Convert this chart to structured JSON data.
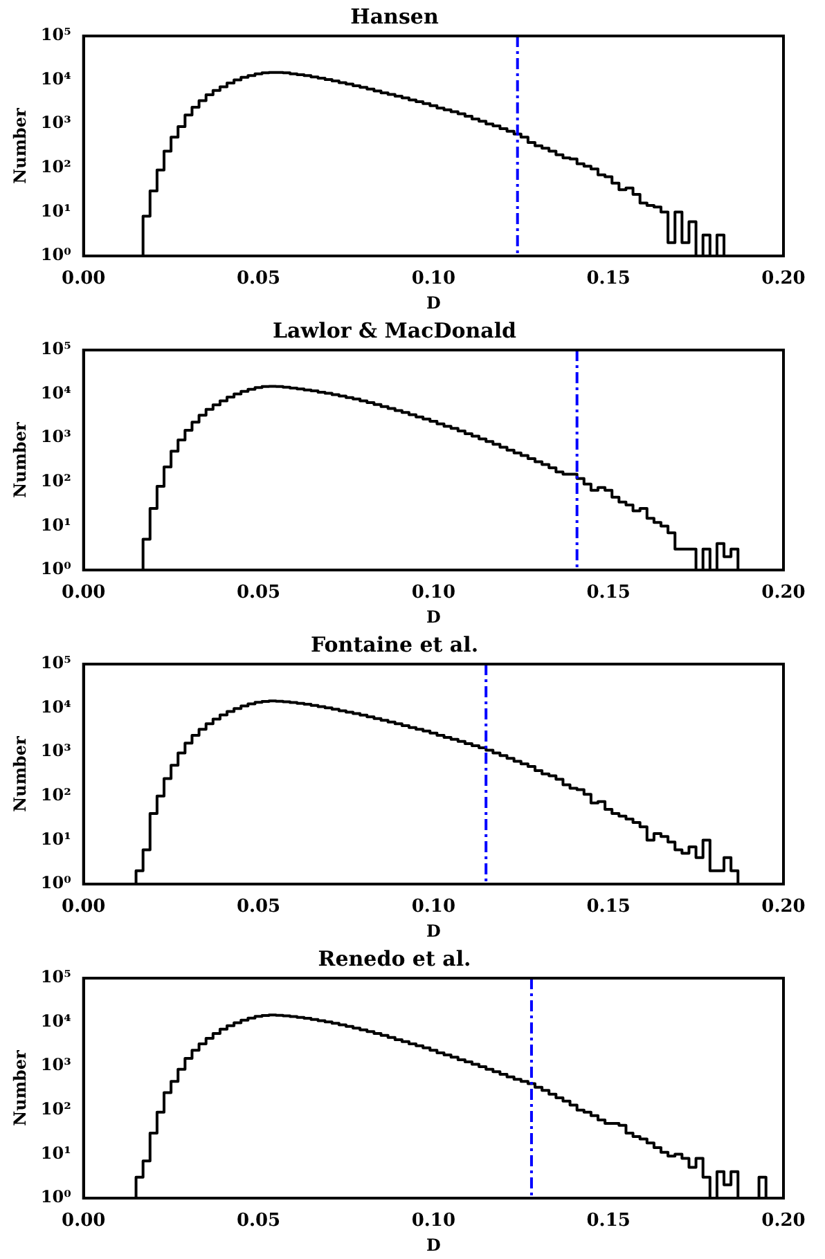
{
  "chart_data": [
    {
      "type": "histogram",
      "title": "Hansen",
      "xlabel": "D",
      "ylabel": "Number",
      "color": "#000000",
      "log": "y",
      "bins": [
        0.017,
        0.019,
        0.021,
        0.023,
        0.025,
        0.027,
        0.029,
        0.031,
        0.033,
        0.035,
        0.037,
        0.039,
        0.041,
        0.043,
        0.045,
        0.047,
        0.049,
        0.051,
        0.053,
        0.055,
        0.057,
        0.059,
        0.061,
        0.063,
        0.065,
        0.067,
        0.069,
        0.071,
        0.073,
        0.075,
        0.077,
        0.079,
        0.081,
        0.083,
        0.085,
        0.087,
        0.089,
        0.091,
        0.093,
        0.095,
        0.097,
        0.099,
        0.101,
        0.103,
        0.105,
        0.107,
        0.109,
        0.111,
        0.113,
        0.115,
        0.117,
        0.119,
        0.121,
        0.123,
        0.125,
        0.127,
        0.129,
        0.131,
        0.133,
        0.135,
        0.137,
        0.139,
        0.141,
        0.143,
        0.145,
        0.147,
        0.149,
        0.151,
        0.153,
        0.155,
        0.157,
        0.159,
        0.161,
        0.163,
        0.165,
        0.167,
        0.169,
        0.171,
        0.173,
        0.175,
        0.177,
        0.179,
        0.181,
        0.183
      ],
      "values": [
        8,
        30,
        90,
        240,
        500,
        870,
        1600,
        2400,
        3400,
        4600,
        5800,
        7000,
        8500,
        10000,
        11500,
        12600,
        13800,
        14500,
        14800,
        14800,
        14500,
        13800,
        13200,
        12600,
        11700,
        11000,
        10200,
        9500,
        8700,
        8100,
        7400,
        6800,
        6200,
        5600,
        5100,
        4700,
        4300,
        3900,
        3500,
        3200,
        2900,
        2600,
        2300,
        2100,
        1900,
        1700,
        1500,
        1300,
        1150,
        1000,
        900,
        780,
        680,
        590,
        500,
        380,
        320,
        280,
        240,
        200,
        170,
        160,
        125,
        110,
        95,
        70,
        63,
        45,
        32,
        35,
        25,
        16,
        14,
        13,
        10,
        2,
        10,
        2,
        6,
        1,
        3,
        1,
        3
      ],
      "xlim": [
        0,
        0.2
      ],
      "xticks": [
        {
          "value": 0,
          "label": "0.00"
        },
        {
          "value": 0.05,
          "label": "0.05"
        },
        {
          "value": 0.1,
          "label": "0.10"
        },
        {
          "value": 0.15,
          "label": "0.15"
        },
        {
          "value": 0.2,
          "label": "0.20"
        }
      ],
      "ylim": [
        1,
        100000
      ],
      "yticks": [
        {
          "value": 1,
          "label": "10⁰"
        },
        {
          "value": 10,
          "label": "10¹"
        },
        {
          "value": 100,
          "label": "10²"
        },
        {
          "value": 1000,
          "label": "10³"
        },
        {
          "value": 10000,
          "label": "10⁴"
        },
        {
          "value": 100000,
          "label": "10⁵"
        }
      ],
      "ref_lines": [
        {
          "axis": "x",
          "value": 0.124,
          "color": "#0000ff",
          "line_style": "dashdot"
        }
      ]
    },
    {
      "type": "histogram",
      "title": "Lawlor & MacDonald",
      "xlabel": "D",
      "ylabel": "Number",
      "color": "#000000",
      "log": "y",
      "bins": [
        0.017,
        0.019,
        0.021,
        0.023,
        0.025,
        0.027,
        0.029,
        0.031,
        0.033,
        0.035,
        0.037,
        0.039,
        0.041,
        0.043,
        0.045,
        0.047,
        0.049,
        0.051,
        0.053,
        0.055,
        0.057,
        0.059,
        0.061,
        0.063,
        0.065,
        0.067,
        0.069,
        0.071,
        0.073,
        0.075,
        0.077,
        0.079,
        0.081,
        0.083,
        0.085,
        0.087,
        0.089,
        0.091,
        0.093,
        0.095,
        0.097,
        0.099,
        0.101,
        0.103,
        0.105,
        0.107,
        0.109,
        0.111,
        0.113,
        0.115,
        0.117,
        0.119,
        0.121,
        0.123,
        0.125,
        0.127,
        0.129,
        0.131,
        0.133,
        0.135,
        0.137,
        0.139,
        0.141,
        0.143,
        0.145,
        0.147,
        0.149,
        0.151,
        0.153,
        0.155,
        0.157,
        0.159,
        0.161,
        0.163,
        0.165,
        0.167,
        0.169,
        0.171,
        0.173,
        0.175,
        0.177,
        0.179,
        0.181,
        0.183,
        0.185,
        0.187
      ],
      "values": [
        5,
        25,
        80,
        220,
        500,
        900,
        1500,
        2300,
        3300,
        4500,
        5700,
        7000,
        8500,
        10000,
        11500,
        12800,
        14000,
        14800,
        15000,
        14800,
        14300,
        13700,
        13000,
        12400,
        11800,
        11000,
        10400,
        9700,
        9000,
        8300,
        7700,
        7000,
        6400,
        5800,
        5200,
        4700,
        4200,
        3800,
        3400,
        3000,
        2700,
        2400,
        2100,
        1850,
        1650,
        1450,
        1250,
        1100,
        950,
        830,
        720,
        620,
        530,
        460,
        400,
        340,
        290,
        250,
        210,
        170,
        150,
        150,
        120,
        90,
        65,
        75,
        65,
        45,
        35,
        30,
        22,
        25,
        15,
        12,
        10,
        7,
        3,
        3,
        3,
        1,
        3,
        1,
        4,
        2,
        3
      ],
      "xlim": [
        0,
        0.2
      ],
      "xticks": [
        {
          "value": 0,
          "label": "0.00"
        },
        {
          "value": 0.05,
          "label": "0.05"
        },
        {
          "value": 0.1,
          "label": "0.10"
        },
        {
          "value": 0.15,
          "label": "0.15"
        },
        {
          "value": 0.2,
          "label": "0.20"
        }
      ],
      "ylim": [
        1,
        100000
      ],
      "yticks": [
        {
          "value": 1,
          "label": "10⁰"
        },
        {
          "value": 10,
          "label": "10¹"
        },
        {
          "value": 100,
          "label": "10²"
        },
        {
          "value": 1000,
          "label": "10³"
        },
        {
          "value": 10000,
          "label": "10⁴"
        },
        {
          "value": 100000,
          "label": "10⁵"
        }
      ],
      "ref_lines": [
        {
          "axis": "x",
          "value": 0.141,
          "color": "#0000ff",
          "line_style": "dashdot"
        }
      ]
    },
    {
      "type": "histogram",
      "title": "Fontaine et al.",
      "xlabel": "D",
      "ylabel": "Number",
      "color": "#000000",
      "log": "y",
      "bins": [
        0.015,
        0.017,
        0.019,
        0.021,
        0.023,
        0.025,
        0.027,
        0.029,
        0.031,
        0.033,
        0.035,
        0.037,
        0.039,
        0.041,
        0.043,
        0.045,
        0.047,
        0.049,
        0.051,
        0.053,
        0.055,
        0.057,
        0.059,
        0.061,
        0.063,
        0.065,
        0.067,
        0.069,
        0.071,
        0.073,
        0.075,
        0.077,
        0.079,
        0.081,
        0.083,
        0.085,
        0.087,
        0.089,
        0.091,
        0.093,
        0.095,
        0.097,
        0.099,
        0.101,
        0.103,
        0.105,
        0.107,
        0.109,
        0.111,
        0.113,
        0.115,
        0.117,
        0.119,
        0.121,
        0.123,
        0.125,
        0.127,
        0.129,
        0.131,
        0.133,
        0.135,
        0.137,
        0.139,
        0.141,
        0.143,
        0.145,
        0.147,
        0.149,
        0.151,
        0.153,
        0.155,
        0.157,
        0.159,
        0.161,
        0.163,
        0.165,
        0.167,
        0.169,
        0.171,
        0.173,
        0.175,
        0.177,
        0.179,
        0.181,
        0.183,
        0.185,
        0.187
      ],
      "values": [
        2,
        6,
        40,
        100,
        250,
        500,
        950,
        1600,
        2400,
        3300,
        4400,
        5600,
        7000,
        8400,
        9800,
        11200,
        12500,
        13500,
        14200,
        14500,
        14300,
        13900,
        13400,
        12800,
        12200,
        11500,
        10800,
        10100,
        9400,
        8700,
        8100,
        7500,
        6900,
        6300,
        5800,
        5300,
        4800,
        4400,
        4000,
        3600,
        3300,
        3000,
        2700,
        2400,
        2150,
        1950,
        1750,
        1550,
        1400,
        1250,
        1100,
        950,
        830,
        720,
        620,
        540,
        470,
        380,
        320,
        290,
        240,
        180,
        150,
        140,
        110,
        70,
        75,
        50,
        40,
        35,
        30,
        25,
        20,
        10,
        14,
        12,
        9,
        6,
        5,
        7,
        4,
        10,
        2,
        2,
        4,
        2
      ],
      "xlim": [
        0,
        0.2
      ],
      "xticks": [
        {
          "value": 0,
          "label": "0.00"
        },
        {
          "value": 0.05,
          "label": "0.05"
        },
        {
          "value": 0.1,
          "label": "0.10"
        },
        {
          "value": 0.15,
          "label": "0.15"
        },
        {
          "value": 0.2,
          "label": "0.20"
        }
      ],
      "ylim": [
        1,
        100000
      ],
      "yticks": [
        {
          "value": 1,
          "label": "10⁰"
        },
        {
          "value": 10,
          "label": "10¹"
        },
        {
          "value": 100,
          "label": "10²"
        },
        {
          "value": 1000,
          "label": "10³"
        },
        {
          "value": 10000,
          "label": "10⁴"
        },
        {
          "value": 100000,
          "label": "10⁵"
        }
      ],
      "ref_lines": [
        {
          "axis": "x",
          "value": 0.115,
          "color": "#0000ff",
          "line_style": "dashdot"
        }
      ]
    },
    {
      "type": "histogram",
      "title": "Renedo et al.",
      "xlabel": "D",
      "ylabel": "Number",
      "color": "#000000",
      "log": "y",
      "bins": [
        0.015,
        0.017,
        0.019,
        0.021,
        0.023,
        0.025,
        0.027,
        0.029,
        0.031,
        0.033,
        0.035,
        0.037,
        0.039,
        0.041,
        0.043,
        0.045,
        0.047,
        0.049,
        0.051,
        0.053,
        0.055,
        0.057,
        0.059,
        0.061,
        0.063,
        0.065,
        0.067,
        0.069,
        0.071,
        0.073,
        0.075,
        0.077,
        0.079,
        0.081,
        0.083,
        0.085,
        0.087,
        0.089,
        0.091,
        0.093,
        0.095,
        0.097,
        0.099,
        0.101,
        0.103,
        0.105,
        0.107,
        0.109,
        0.111,
        0.113,
        0.115,
        0.117,
        0.119,
        0.121,
        0.123,
        0.125,
        0.127,
        0.129,
        0.131,
        0.133,
        0.135,
        0.137,
        0.139,
        0.141,
        0.143,
        0.145,
        0.147,
        0.149,
        0.151,
        0.153,
        0.155,
        0.157,
        0.159,
        0.161,
        0.163,
        0.165,
        0.167,
        0.169,
        0.171,
        0.173,
        0.175,
        0.177,
        0.179,
        0.181,
        0.183,
        0.185,
        0.187,
        0.189,
        0.191,
        0.193,
        0.195
      ],
      "values": [
        3,
        7,
        30,
        90,
        250,
        450,
        850,
        1500,
        2300,
        3200,
        4300,
        5500,
        6900,
        8300,
        9700,
        11100,
        12400,
        13500,
        14200,
        14500,
        14300,
        13900,
        13400,
        12800,
        12200,
        11500,
        10800,
        10100,
        9400,
        8700,
        8000,
        7300,
        6700,
        6100,
        5500,
        5000,
        4500,
        4000,
        3600,
        3200,
        2900,
        2600,
        2300,
        2000,
        1800,
        1600,
        1400,
        1250,
        1100,
        970,
        850,
        750,
        650,
        570,
        500,
        450,
        400,
        330,
        280,
        230,
        190,
        160,
        130,
        100,
        90,
        75,
        60,
        50,
        50,
        45,
        30,
        25,
        22,
        18,
        14,
        11,
        9,
        10,
        8,
        5,
        8,
        3,
        1,
        4,
        2,
        4,
        1,
        1,
        1,
        3
      ],
      "xlim": [
        0,
        0.2
      ],
      "xticks": [
        {
          "value": 0,
          "label": "0.00"
        },
        {
          "value": 0.05,
          "label": "0.05"
        },
        {
          "value": 0.1,
          "label": "0.10"
        },
        {
          "value": 0.15,
          "label": "0.15"
        },
        {
          "value": 0.2,
          "label": "0.20"
        }
      ],
      "ylim": [
        1,
        100000
      ],
      "yticks": [
        {
          "value": 1,
          "label": "10⁰"
        },
        {
          "value": 10,
          "label": "10¹"
        },
        {
          "value": 100,
          "label": "10²"
        },
        {
          "value": 1000,
          "label": "10³"
        },
        {
          "value": 10000,
          "label": "10⁴"
        },
        {
          "value": 100000,
          "label": "10⁵"
        }
      ],
      "ref_lines": [
        {
          "axis": "x",
          "value": 0.128,
          "color": "#0000ff",
          "line_style": "dashdot"
        }
      ]
    }
  ]
}
